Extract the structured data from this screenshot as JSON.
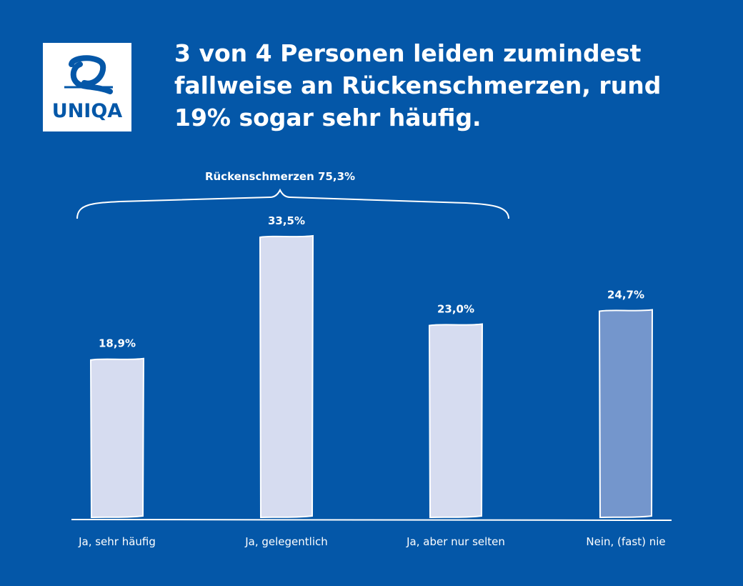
{
  "logo": {
    "text": "UNIQA"
  },
  "title_lines": [
    "3 von 4 Personen leiden zumindest",
    "fallweise an Rückenschmerzen, rund",
    "19% sogar sehr häufig."
  ],
  "colors": {
    "background": "#0457a8",
    "bar_light": "#d6dcf0",
    "bar_highlight": "#7496cc",
    "text": "#ffffff"
  },
  "chart_data": {
    "type": "bar",
    "title": "3 von 4 Personen leiden zumindest fallweise an Rückenschmerzen, rund 19% sogar sehr häufig.",
    "categories": [
      "Ja, sehr häufig",
      "Ja, gelegentlich",
      "Ja, aber nur selten",
      "Nein, (fast) nie"
    ],
    "values": [
      18.9,
      33.5,
      23.0,
      24.7
    ],
    "value_labels": [
      "18,9%",
      "33,5%",
      "23,0%",
      "24,7%"
    ],
    "highlighted": [
      false,
      false,
      false,
      true
    ],
    "ylim": [
      0,
      35
    ],
    "xlabel": "",
    "ylabel": "",
    "grid": false,
    "annotation": {
      "text": "Rückenschmerzen 75,3%",
      "spans_categories": [
        0,
        2
      ]
    }
  }
}
